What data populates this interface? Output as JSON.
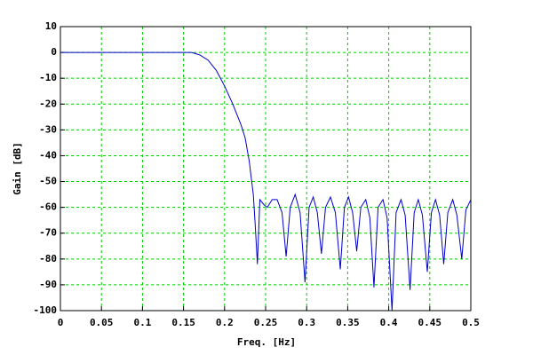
{
  "chart_data": {
    "type": "line",
    "xlabel": "Freq. [Hz]",
    "ylabel": "Gain [dB]",
    "xlim": [
      0,
      0.5
    ],
    "ylim": [
      -100,
      10
    ],
    "xticks": [
      0,
      0.05,
      0.1,
      0.15,
      0.2,
      0.25,
      0.3,
      0.35,
      0.4,
      0.45,
      0.5
    ],
    "yticks": [
      10,
      0,
      -10,
      -20,
      -30,
      -40,
      -50,
      -60,
      -70,
      -80,
      -90,
      -100
    ],
    "grid": true,
    "grid_color": "#00cc00",
    "series": [
      {
        "color": "#0000cc",
        "x": [
          0,
          0.05,
          0.1,
          0.15,
          0.16,
          0.17,
          0.18,
          0.19,
          0.2,
          0.21,
          0.22,
          0.225,
          0.23,
          0.235,
          0.237,
          0.24,
          0.243,
          0.248,
          0.252,
          0.258,
          0.264,
          0.27,
          0.275,
          0.28,
          0.286,
          0.292,
          0.298,
          0.303,
          0.308,
          0.313,
          0.318,
          0.323,
          0.329,
          0.335,
          0.341,
          0.346,
          0.351,
          0.356,
          0.361,
          0.366,
          0.372,
          0.377,
          0.382,
          0.387,
          0.393,
          0.398,
          0.404,
          0.409,
          0.415,
          0.42,
          0.426,
          0.431,
          0.436,
          0.441,
          0.447,
          0.452,
          0.457,
          0.462,
          0.467,
          0.472,
          0.478,
          0.483,
          0.489,
          0.494,
          0.5
        ],
        "values": [
          0,
          0,
          0,
          0,
          0,
          -1,
          -3,
          -7,
          -13,
          -20,
          -28,
          -33,
          -42,
          -55,
          -65,
          -82,
          -57,
          -59,
          -60,
          -57,
          -57,
          -62,
          -79,
          -60,
          -55,
          -62,
          -89,
          -60,
          -56,
          -62,
          -78,
          -60,
          -56,
          -62,
          -84,
          -60,
          -56,
          -62,
          -77,
          -60,
          -57,
          -64,
          -91,
          -60,
          -57,
          -64,
          -100,
          -62,
          -57,
          -63,
          -92,
          -62,
          -57,
          -63,
          -85,
          -62,
          -57,
          -63,
          -82,
          -62,
          -57,
          -63,
          -80,
          -61,
          -57
        ]
      }
    ]
  }
}
